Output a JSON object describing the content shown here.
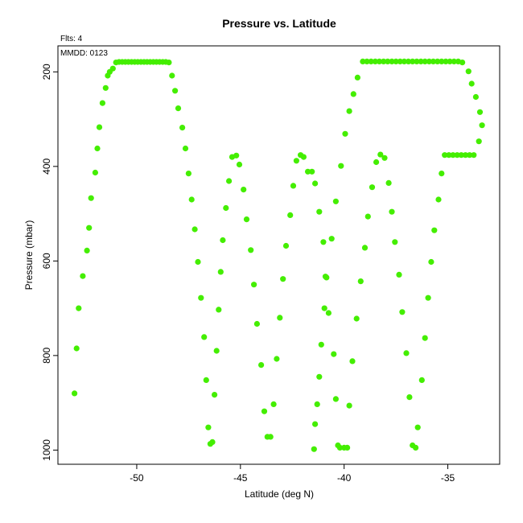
{
  "chart_data": {
    "type": "scatter",
    "title": "Pressure vs. Latitude",
    "annotations": {
      "flts": "Flts: 4",
      "mmdd": "MMDD: 0123"
    },
    "xlabel": "Latitude (deg N)",
    "ylabel": "Pressure (mbar)",
    "xlim": [
      -53.8,
      -32.5
    ],
    "ylim": [
      1030,
      145
    ],
    "y_reversed": true,
    "xticks": [
      -50,
      -45,
      -40,
      -35
    ],
    "yticks": [
      200,
      400,
      600,
      800,
      1000
    ],
    "grid": false,
    "legend": "none",
    "marker_color": "#44ee00",
    "points": [
      [
        -53.0,
        880
      ],
      [
        -52.9,
        785
      ],
      [
        -52.8,
        700
      ],
      [
        -52.6,
        632
      ],
      [
        -52.4,
        578
      ],
      [
        -52.3,
        530
      ],
      [
        -52.2,
        467
      ],
      [
        -52.0,
        413
      ],
      [
        -51.9,
        362
      ],
      [
        -51.8,
        317
      ],
      [
        -51.65,
        266
      ],
      [
        -51.5,
        234
      ],
      [
        -51.4,
        208
      ],
      [
        -51.3,
        200
      ],
      [
        -51.15,
        193
      ],
      [
        -51.0,
        180
      ],
      [
        -50.85,
        179
      ],
      [
        -50.7,
        179
      ],
      [
        -50.55,
        179
      ],
      [
        -50.4,
        179
      ],
      [
        -50.25,
        179
      ],
      [
        -50.1,
        179
      ],
      [
        -49.95,
        179
      ],
      [
        -49.8,
        179
      ],
      [
        -49.65,
        179
      ],
      [
        -49.5,
        179
      ],
      [
        -49.35,
        179
      ],
      [
        -49.2,
        179
      ],
      [
        -49.05,
        179
      ],
      [
        -48.9,
        179
      ],
      [
        -48.75,
        179
      ],
      [
        -48.6,
        179
      ],
      [
        -48.45,
        180
      ],
      [
        -48.3,
        208
      ],
      [
        -48.15,
        240
      ],
      [
        -48.0,
        277
      ],
      [
        -47.8,
        318
      ],
      [
        -47.65,
        362
      ],
      [
        -47.5,
        415
      ],
      [
        -47.35,
        470
      ],
      [
        -47.2,
        533
      ],
      [
        -47.05,
        602
      ],
      [
        -46.9,
        678
      ],
      [
        -46.75,
        761
      ],
      [
        -46.65,
        852
      ],
      [
        -46.55,
        952
      ],
      [
        -46.45,
        987
      ],
      [
        -46.35,
        983
      ],
      [
        -46.25,
        883
      ],
      [
        -46.15,
        790
      ],
      [
        -46.05,
        703
      ],
      [
        -45.95,
        623
      ],
      [
        -45.85,
        556
      ],
      [
        -45.7,
        488
      ],
      [
        -45.55,
        431
      ],
      [
        -45.4,
        380
      ],
      [
        -45.2,
        377
      ],
      [
        -45.05,
        396
      ],
      [
        -44.85,
        449
      ],
      [
        -44.7,
        512
      ],
      [
        -44.5,
        577
      ],
      [
        -44.35,
        650
      ],
      [
        -44.2,
        733
      ],
      [
        -44.0,
        820
      ],
      [
        -43.85,
        918
      ],
      [
        -43.7,
        972
      ],
      [
        -43.55,
        972
      ],
      [
        -43.4,
        903
      ],
      [
        -43.25,
        807
      ],
      [
        -43.1,
        720
      ],
      [
        -42.95,
        638
      ],
      [
        -42.8,
        568
      ],
      [
        -42.6,
        503
      ],
      [
        -42.45,
        441
      ],
      [
        -42.3,
        388
      ],
      [
        -42.1,
        376
      ],
      [
        -41.95,
        380
      ],
      [
        -41.75,
        411
      ],
      [
        -41.55,
        411
      ],
      [
        -41.4,
        436
      ],
      [
        -41.45,
        998
      ],
      [
        -41.4,
        945
      ],
      [
        -41.3,
        903
      ],
      [
        -41.2,
        845
      ],
      [
        -41.1,
        777
      ],
      [
        -41.2,
        496
      ],
      [
        -41.0,
        560
      ],
      [
        -40.9,
        633
      ],
      [
        -40.95,
        700
      ],
      [
        -40.75,
        710
      ],
      [
        -40.85,
        635
      ],
      [
        -40.6,
        553
      ],
      [
        -40.5,
        797
      ],
      [
        -40.4,
        892
      ],
      [
        -40.3,
        990
      ],
      [
        -40.2,
        995
      ],
      [
        -40.0,
        995
      ],
      [
        -39.85,
        995
      ],
      [
        -40.4,
        474
      ],
      [
        -40.15,
        399
      ],
      [
        -39.95,
        331
      ],
      [
        -39.75,
        283
      ],
      [
        -39.55,
        247
      ],
      [
        -39.35,
        212
      ],
      [
        -39.75,
        906
      ],
      [
        -39.6,
        812
      ],
      [
        -39.4,
        722
      ],
      [
        -39.2,
        643
      ],
      [
        -39.0,
        572
      ],
      [
        -38.85,
        506
      ],
      [
        -38.65,
        444
      ],
      [
        -38.45,
        391
      ],
      [
        -38.25,
        375
      ],
      [
        -38.05,
        382
      ],
      [
        -37.85,
        435
      ],
      [
        -37.7,
        496
      ],
      [
        -37.55,
        560
      ],
      [
        -37.35,
        629
      ],
      [
        -37.2,
        708
      ],
      [
        -37.0,
        795
      ],
      [
        -36.85,
        888
      ],
      [
        -36.7,
        990
      ],
      [
        -36.55,
        995
      ],
      [
        -36.45,
        952
      ],
      [
        -36.25,
        852
      ],
      [
        -36.1,
        763
      ],
      [
        -35.95,
        678
      ],
      [
        -35.8,
        602
      ],
      [
        -35.65,
        535
      ],
      [
        -35.45,
        470
      ],
      [
        -35.3,
        415
      ],
      [
        -35.15,
        376
      ],
      [
        -34.95,
        376
      ],
      [
        -34.75,
        376
      ],
      [
        -34.55,
        376
      ],
      [
        -34.35,
        376
      ],
      [
        -34.15,
        376
      ],
      [
        -33.95,
        376
      ],
      [
        -33.75,
        376
      ],
      [
        -33.5,
        347
      ],
      [
        -33.35,
        313
      ],
      [
        -33.45,
        285
      ],
      [
        -33.65,
        253
      ],
      [
        -33.85,
        225
      ],
      [
        -34.0,
        199
      ],
      [
        -39.1,
        178
      ],
      [
        -38.9,
        178
      ],
      [
        -38.7,
        178
      ],
      [
        -38.5,
        178
      ],
      [
        -38.3,
        178
      ],
      [
        -38.1,
        178
      ],
      [
        -37.9,
        178
      ],
      [
        -37.7,
        178
      ],
      [
        -37.5,
        178
      ],
      [
        -37.3,
        178
      ],
      [
        -37.1,
        178
      ],
      [
        -36.9,
        178
      ],
      [
        -36.7,
        178
      ],
      [
        -36.5,
        178
      ],
      [
        -36.3,
        178
      ],
      [
        -36.1,
        178
      ],
      [
        -35.9,
        178
      ],
      [
        -35.7,
        178
      ],
      [
        -35.5,
        178
      ],
      [
        -35.3,
        178
      ],
      [
        -35.1,
        178
      ],
      [
        -34.9,
        178
      ],
      [
        -34.7,
        178
      ],
      [
        -34.5,
        178
      ],
      [
        -34.3,
        180
      ]
    ]
  }
}
